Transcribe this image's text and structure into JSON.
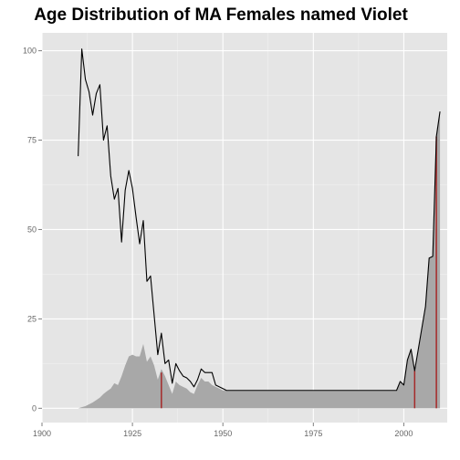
{
  "chart_data": {
    "type": "line",
    "title": "Age Distribution of MA Females named Violet",
    "xlabel": "",
    "ylabel": "",
    "xlim": [
      1900,
      2012
    ],
    "ylim": [
      -4,
      105
    ],
    "x_ticks": [
      1900,
      1925,
      1950,
      1975,
      2000
    ],
    "y_ticks": [
      0,
      25,
      50,
      75,
      100
    ],
    "grid": true,
    "legend": "none",
    "colors": {
      "panel": "#e5e5e5",
      "grid": "#ffffff",
      "line": "#000000",
      "area": "#a8a8a8",
      "marker": "#a52a2a",
      "tick_text": "#666666"
    },
    "series": [
      {
        "kind": "line",
        "points": [
          [
            1910,
            70.5
          ],
          [
            1911,
            100.5
          ],
          [
            1912,
            92
          ],
          [
            1913,
            88.5
          ],
          [
            1914,
            82
          ],
          [
            1915,
            88
          ],
          [
            1916,
            90.5
          ],
          [
            1917,
            75
          ],
          [
            1918,
            79
          ],
          [
            1919,
            65
          ],
          [
            1920,
            58.5
          ],
          [
            1921,
            61.5
          ],
          [
            1922,
            46.5
          ],
          [
            1923,
            61
          ],
          [
            1924,
            66.5
          ],
          [
            1925,
            61.5
          ],
          [
            1926,
            53.5
          ],
          [
            1927,
            46
          ],
          [
            1928,
            52.5
          ],
          [
            1929,
            35.5
          ],
          [
            1930,
            37
          ],
          [
            1931,
            26
          ],
          [
            1932,
            15
          ],
          [
            1933,
            21
          ],
          [
            1934,
            12.5
          ],
          [
            1935,
            13.5
          ],
          [
            1936,
            7
          ],
          [
            1937,
            12.5
          ],
          [
            1938,
            10.5
          ],
          [
            1939,
            9
          ],
          [
            1940,
            8.5
          ],
          [
            1941,
            7.5
          ],
          [
            1942,
            6
          ],
          [
            1943,
            8
          ],
          [
            1944,
            11
          ],
          [
            1945,
            10
          ],
          [
            1946,
            10
          ],
          [
            1947,
            10
          ],
          [
            1948,
            6.5
          ],
          [
            1950,
            5.5
          ],
          [
            1951,
            5
          ],
          [
            1960,
            5
          ],
          [
            1970,
            5
          ],
          [
            1980,
            5
          ],
          [
            1990,
            5
          ],
          [
            1998,
            5
          ],
          [
            1999,
            7.5
          ],
          [
            2000,
            6.5
          ],
          [
            2001,
            13.5
          ],
          [
            2002,
            16.5
          ],
          [
            2003,
            10.5
          ],
          [
            2004,
            16.5
          ],
          [
            2005,
            22.5
          ],
          [
            2006,
            28.5
          ],
          [
            2007,
            42
          ],
          [
            2008,
            42.5
          ],
          [
            2009,
            76
          ],
          [
            2010,
            83
          ]
        ]
      },
      {
        "kind": "area",
        "points": [
          [
            1910,
            0
          ],
          [
            1911,
            0.3
          ],
          [
            1912,
            0.6
          ],
          [
            1913,
            1.1
          ],
          [
            1914,
            1.6
          ],
          [
            1915,
            2.3
          ],
          [
            1916,
            3
          ],
          [
            1917,
            4
          ],
          [
            1918,
            4.8
          ],
          [
            1919,
            5.5
          ],
          [
            1920,
            7
          ],
          [
            1921,
            6.5
          ],
          [
            1922,
            9
          ],
          [
            1923,
            12
          ],
          [
            1924,
            14.5
          ],
          [
            1925,
            15
          ],
          [
            1926,
            14.5
          ],
          [
            1927,
            14.5
          ],
          [
            1928,
            18
          ],
          [
            1929,
            13
          ],
          [
            1930,
            14.5
          ],
          [
            1931,
            12
          ],
          [
            1932,
            8
          ],
          [
            1933,
            11
          ],
          [
            1934,
            9
          ],
          [
            1935,
            6.5
          ],
          [
            1936,
            4
          ],
          [
            1937,
            7.5
          ],
          [
            1938,
            6.5
          ],
          [
            1939,
            6
          ],
          [
            1940,
            5.5
          ],
          [
            1941,
            4.5
          ],
          [
            1942,
            4
          ],
          [
            1943,
            6.5
          ],
          [
            1944,
            8.5
          ],
          [
            1945,
            7.5
          ],
          [
            1946,
            7.5
          ],
          [
            1947,
            6.5
          ],
          [
            1948,
            6
          ],
          [
            1949,
            5.5
          ],
          [
            1950,
            5
          ],
          [
            1960,
            5
          ],
          [
            1970,
            5
          ],
          [
            1980,
            5
          ],
          [
            1990,
            5
          ],
          [
            1998,
            5
          ],
          [
            1999,
            7.5
          ],
          [
            2000,
            6.5
          ],
          [
            2001,
            13.5
          ],
          [
            2002,
            16.5
          ],
          [
            2003,
            10.5
          ],
          [
            2004,
            16.5
          ],
          [
            2005,
            22.5
          ],
          [
            2006,
            28.5
          ],
          [
            2007,
            42
          ],
          [
            2008,
            42.5
          ],
          [
            2009,
            76
          ],
          [
            2010,
            83
          ]
        ]
      }
    ],
    "markers": [
      {
        "x": 1933,
        "y": 10
      },
      {
        "x": 2003,
        "y": 10.5
      },
      {
        "x": 2009,
        "y": 76
      }
    ]
  }
}
